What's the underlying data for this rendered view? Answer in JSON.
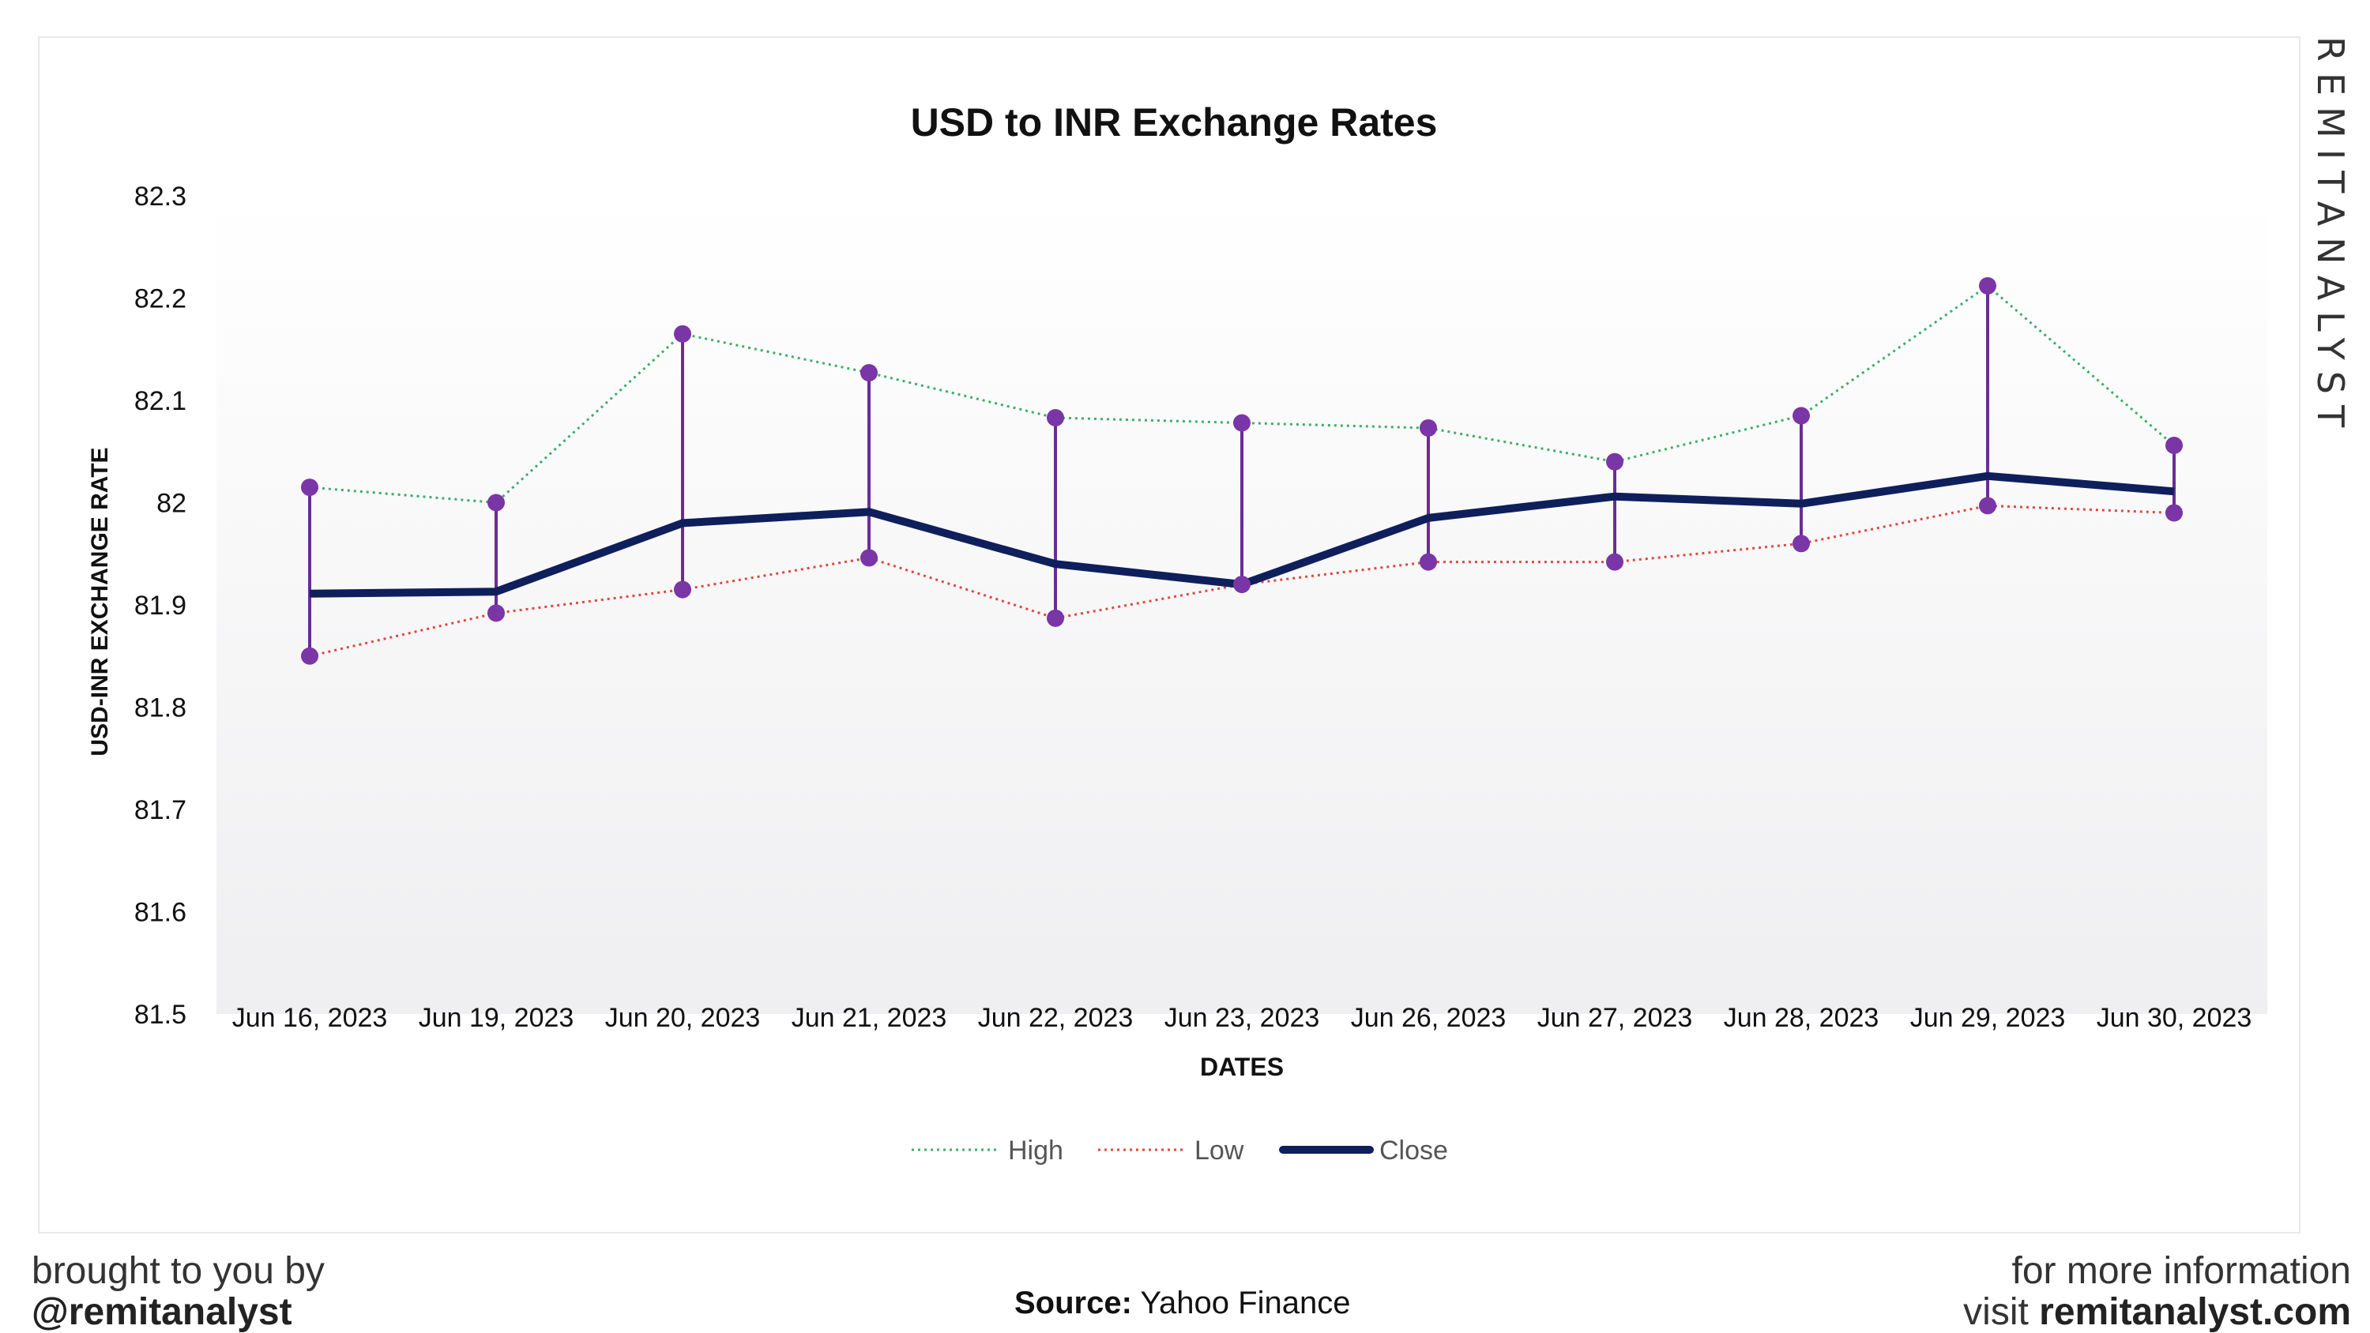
{
  "brand": {
    "vertical_text": "REMITANALYST",
    "tagline": "brought to you by",
    "handle": "@remitanalyst",
    "info_line": "for more information",
    "visit_prefix": "visit ",
    "website": "remitanalyst.com"
  },
  "source": {
    "label": "Source:",
    "value": "Yahoo Finance"
  },
  "colors": {
    "high": "#3dae6a",
    "low": "#e0483e",
    "close": "#0f1f5c",
    "marker": "#7a35a6",
    "range_line": "#6a2c96"
  },
  "chart_data": {
    "type": "line",
    "title": "USD to INR Exchange Rates",
    "xlabel": "DATES",
    "ylabel": "USD-INR EXCHANGE RATE",
    "ylim": [
      81.5,
      82.3
    ],
    "yticks": [
      "81.5",
      "81.6",
      "81.7",
      "81.8",
      "81.9",
      "82",
      "82.1",
      "82.2",
      "82.3"
    ],
    "grid": false,
    "legend_position": "bottom",
    "categories": [
      "Jun 16, 2023",
      "Jun 19, 2023",
      "Jun 20, 2023",
      "Jun 21, 2023",
      "Jun 22, 2023",
      "Jun 23, 2023",
      "Jun 26, 2023",
      "Jun 27, 2023",
      "Jun 28, 2023",
      "Jun 29, 2023",
      "Jun 30, 2023"
    ],
    "series": [
      {
        "name": "High",
        "values": [
          82.015,
          82.0,
          82.165,
          82.127,
          82.083,
          82.078,
          82.073,
          82.04,
          82.085,
          82.212,
          82.056
        ]
      },
      {
        "name": "Low",
        "values": [
          81.85,
          81.892,
          81.915,
          81.946,
          81.887,
          81.92,
          81.942,
          81.942,
          81.96,
          81.997,
          81.99
        ]
      },
      {
        "name": "Close",
        "values": [
          81.911,
          81.913,
          81.98,
          81.991,
          81.94,
          81.92,
          81.985,
          82.006,
          81.999,
          82.026,
          82.011
        ]
      }
    ]
  }
}
